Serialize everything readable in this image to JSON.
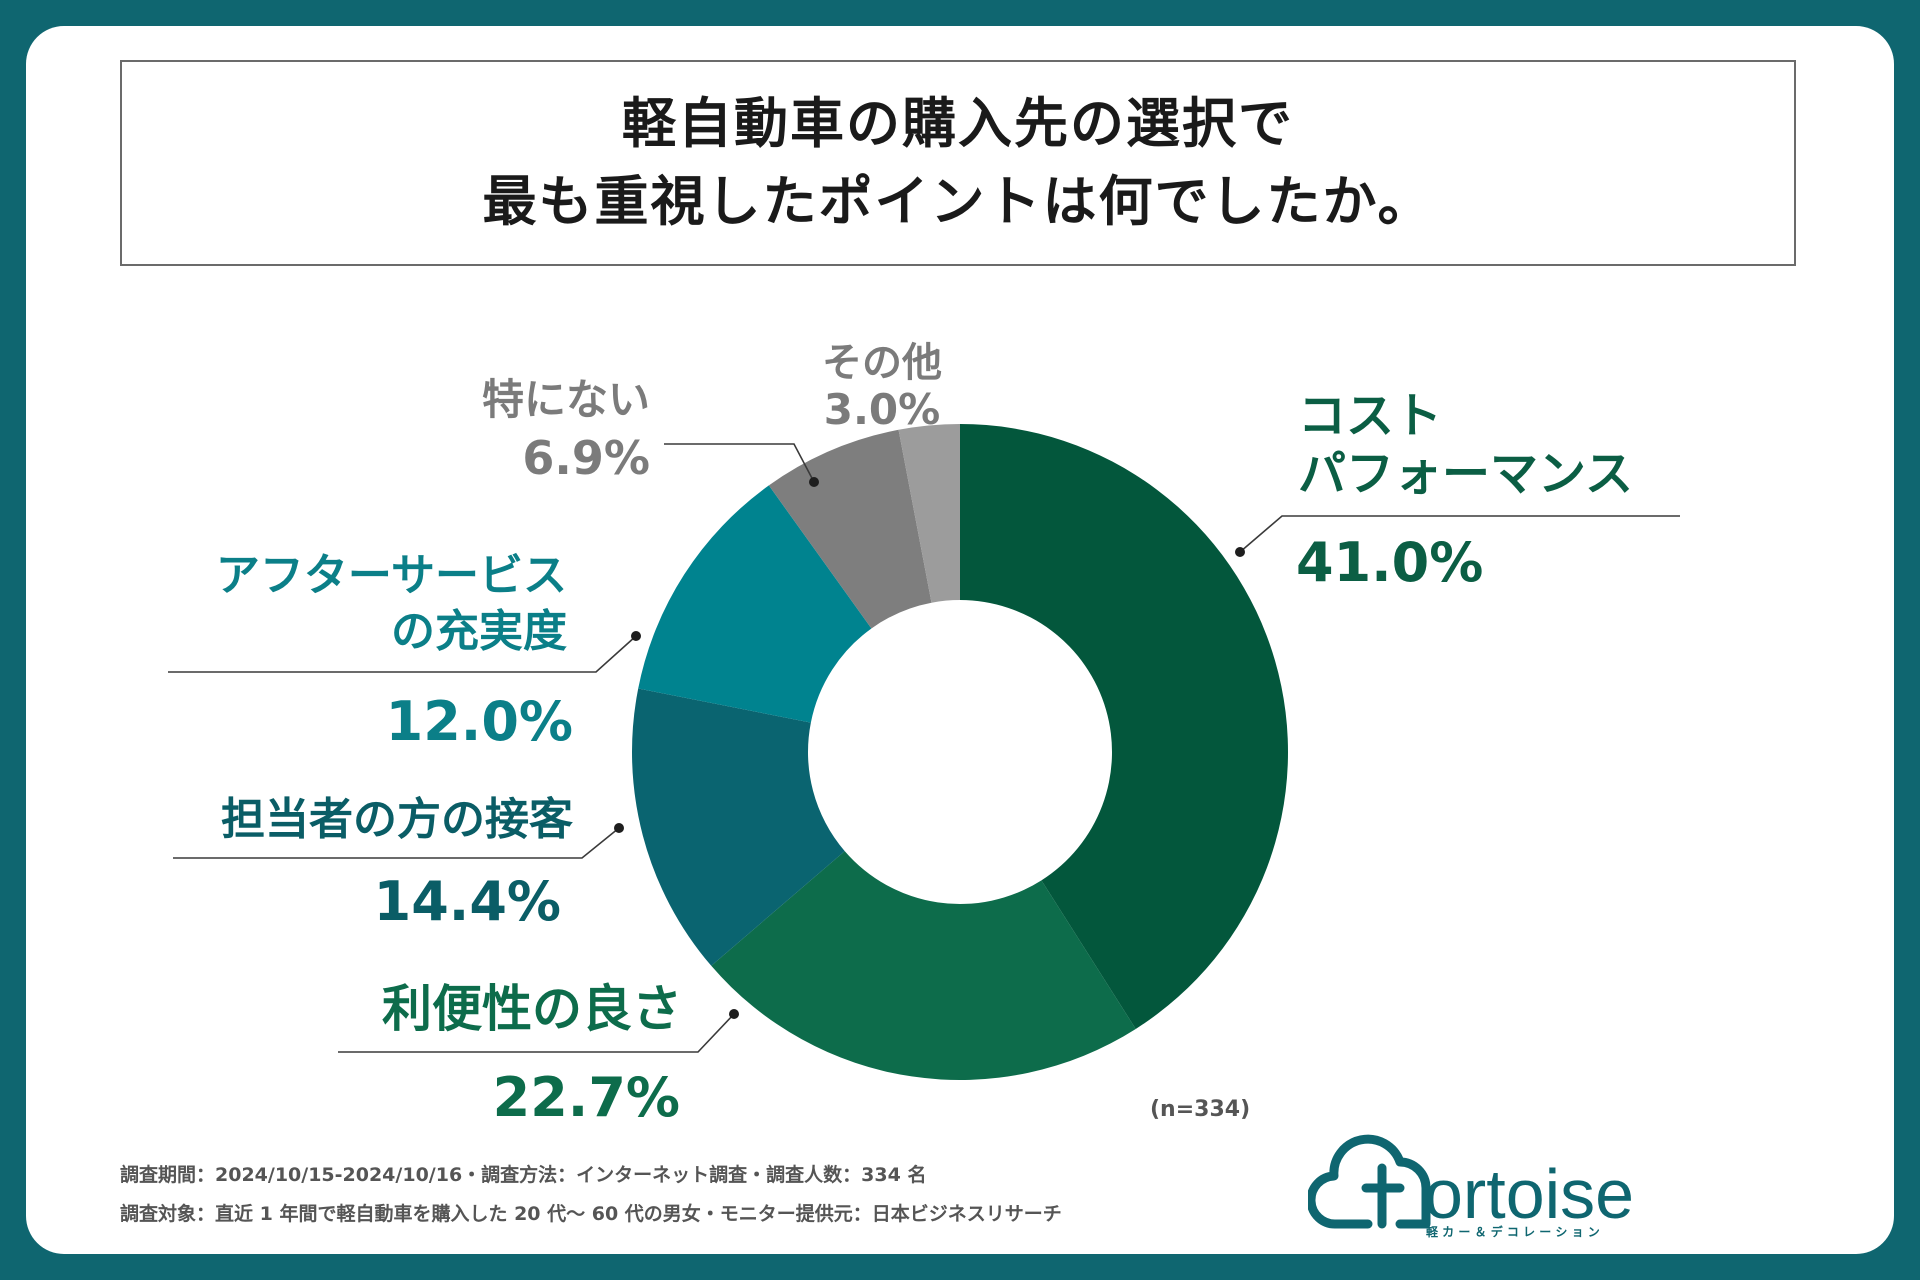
{
  "title": {
    "line1": "軽自動車の購入先の選択で",
    "line2": "最も重視したポイントは何でしたか。"
  },
  "chart_data": {
    "type": "pie",
    "variant": "donut",
    "title": "軽自動車の購入先の選択で最も重視したポイントは何でしたか。",
    "categories": [
      "コストパフォーマンス",
      "利便性の良さ",
      "担当者の方の接客",
      "アフターサービスの充実度",
      "特にない",
      "その他"
    ],
    "values": [
      41.0,
      22.7,
      14.4,
      12.0,
      6.9,
      3.0
    ],
    "unit": "%",
    "colors": [
      "#03573c",
      "#0d6c4b",
      "#0a6470",
      "#00838f",
      "#7e7e7e",
      "#9c9c9c"
    ],
    "labels": [
      {
        "lines": [
          "コスト",
          "パフォーマンス"
        ],
        "value": "41.0%",
        "color": "#0b5e44"
      },
      {
        "lines": [
          "利便性の良さ"
        ],
        "value": "22.7%",
        "color": "#0d6c4b"
      },
      {
        "lines": [
          "担当者の方の接客"
        ],
        "value": "14.4%",
        "color": "#0a5d66"
      },
      {
        "lines": [
          "アフターサービス",
          "の充実度"
        ],
        "value": "12.0%",
        "color": "#0b7f88"
      },
      {
        "lines": [
          "特にない"
        ],
        "value": "6.9%",
        "color": "#7b7b7b"
      },
      {
        "lines": [
          "その他"
        ],
        "value": "3.0%",
        "color": "#7b7b7b"
      }
    ],
    "sample_size": "(n=334)"
  },
  "footnotes": {
    "line1": "調査期間：2024/10/15-2024/10/16・調査方法：インターネット調査・調査人数：334 名",
    "line2": "調査対象：直近 1 年間で軽自動車を購入した 20 代〜 60 代の男女・モニター提供元：日本ビジネスリサーチ"
  },
  "logo": {
    "wordmark": "ortoise",
    "tagline": "軽 カ ー ＆ デ コ レ ー シ ョ ン",
    "color": "#0f6670"
  }
}
